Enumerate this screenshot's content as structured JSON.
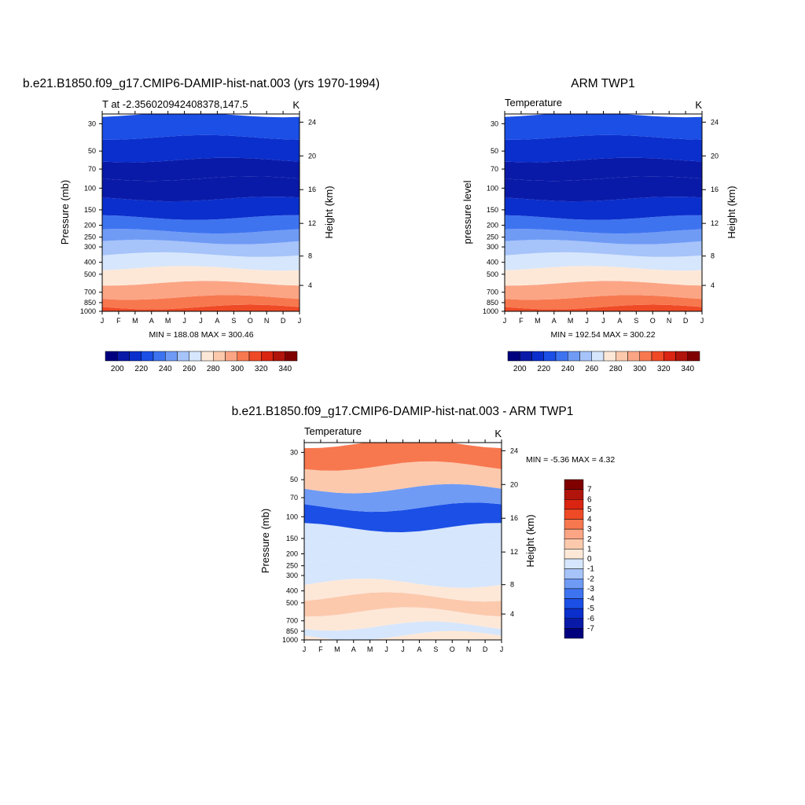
{
  "panel1": {
    "title": "b.e21.B1850.f09_g17.CMIP6-DAMIP-hist-nat.003 (yrs 1970-1994)",
    "left_label": "T at -2.356020942408378,147.5",
    "right_label": "K",
    "ylabel": "Pressure (mb)",
    "y2label": "Height (km)",
    "minmax": "MIN = 188.08 MAX = 300.46"
  },
  "panel2": {
    "title": "ARM TWP1",
    "left_label": "Temperature",
    "right_label": "K",
    "ylabel": "pressure level",
    "y2label": "Height (km)",
    "minmax": "MIN = 192.54 MAX = 300.22"
  },
  "panel3": {
    "title": "b.e21.B1850.f09_g17.CMIP6-DAMIP-hist-nat.003 - ARM TWP1",
    "left_label": "Temperature",
    "right_label": "K",
    "ylabel": "Pressure (mb)",
    "y2label": "Height (km)",
    "minmax": "MIN =  -5.36 MAX =   4.32"
  },
  "chart_data": [
    {
      "type": "heatmap",
      "title": "b.e21.B1850.f09_g17.CMIP6-DAMIP-hist-nat.003 (yrs 1970-1994)",
      "subtitle": "T at -2.356020942408378,147.5",
      "units": "K",
      "xlabel": "",
      "ylabel": "Pressure (mb)",
      "y2label": "Height (km)",
      "x_ticks": [
        "J",
        "F",
        "M",
        "A",
        "M",
        "J",
        "J",
        "A",
        "S",
        "O",
        "N",
        "D",
        "J"
      ],
      "y_ticks": [
        30,
        50,
        70,
        100,
        150,
        200,
        250,
        300,
        400,
        500,
        700,
        850,
        1000
      ],
      "y2_ticks": [
        24,
        20,
        16,
        12,
        8,
        4
      ],
      "ylim": [
        1000,
        25
      ],
      "y_scale": "log",
      "min": 188.08,
      "max": 300.46,
      "colorbar_levels": [
        200,
        220,
        240,
        260,
        280,
        300,
        320,
        340
      ],
      "colors": [
        "#00007f",
        "#0a1aa8",
        "#0b2fcc",
        "#1b4fe6",
        "#3e73f0",
        "#6f9bf5",
        "#a6c3fa",
        "#d6e6fc",
        "#fde8d8",
        "#fcc9ad",
        "#fba585",
        "#f7784f",
        "#ef4a26",
        "#d92511",
        "#b0140b",
        "#800000"
      ],
      "bands": [
        {
          "p": 1000,
          "value": 300
        },
        {
          "p": 850,
          "value": 294
        },
        {
          "p": 700,
          "value": 286
        },
        {
          "p": 500,
          "value": 268
        },
        {
          "p": 400,
          "value": 258
        },
        {
          "p": 300,
          "value": 244
        },
        {
          "p": 250,
          "value": 234
        },
        {
          "p": 200,
          "value": 222
        },
        {
          "p": 150,
          "value": 208
        },
        {
          "p": 100,
          "value": 192
        },
        {
          "p": 70,
          "value": 196
        },
        {
          "p": 50,
          "value": 206
        },
        {
          "p": 30,
          "value": 214
        }
      ]
    },
    {
      "type": "heatmap",
      "title": "ARM TWP1",
      "subtitle": "Temperature",
      "units": "K",
      "xlabel": "",
      "ylabel": "pressure level",
      "y2label": "Height (km)",
      "x_ticks": [
        "J",
        "F",
        "M",
        "A",
        "M",
        "J",
        "J",
        "A",
        "S",
        "O",
        "N",
        "D",
        "J"
      ],
      "y_ticks": [
        30,
        50,
        70,
        100,
        150,
        200,
        250,
        300,
        400,
        500,
        700,
        850,
        1000
      ],
      "y2_ticks": [
        24,
        20,
        16,
        12,
        8,
        4
      ],
      "ylim": [
        1000,
        25
      ],
      "y_scale": "log",
      "min": 192.54,
      "max": 300.22,
      "colorbar_levels": [
        200,
        220,
        240,
        260,
        280,
        300,
        320,
        340
      ],
      "colors": [
        "#00007f",
        "#0a1aa8",
        "#0b2fcc",
        "#1b4fe6",
        "#3e73f0",
        "#6f9bf5",
        "#a6c3fa",
        "#d6e6fc",
        "#fde8d8",
        "#fcc9ad",
        "#fba585",
        "#f7784f",
        "#ef4a26",
        "#d92511",
        "#b0140b",
        "#800000"
      ],
      "bands": [
        {
          "p": 1000,
          "value": 300
        },
        {
          "p": 850,
          "value": 294
        },
        {
          "p": 700,
          "value": 286
        },
        {
          "p": 500,
          "value": 268
        },
        {
          "p": 400,
          "value": 258
        },
        {
          "p": 300,
          "value": 244
        },
        {
          "p": 250,
          "value": 234
        },
        {
          "p": 200,
          "value": 222
        },
        {
          "p": 150,
          "value": 208
        },
        {
          "p": 100,
          "value": 194
        },
        {
          "p": 70,
          "value": 198
        },
        {
          "p": 50,
          "value": 206
        },
        {
          "p": 30,
          "value": 214
        }
      ]
    },
    {
      "type": "heatmap",
      "title": "b.e21.B1850.f09_g17.CMIP6-DAMIP-hist-nat.003 - ARM TWP1",
      "subtitle": "Temperature",
      "units": "K",
      "xlabel": "",
      "ylabel": "Pressure (mb)",
      "y2label": "Height (km)",
      "x_ticks": [
        "J",
        "F",
        "M",
        "A",
        "M",
        "J",
        "J",
        "A",
        "S",
        "O",
        "N",
        "D",
        "J"
      ],
      "y_ticks": [
        30,
        50,
        70,
        100,
        150,
        200,
        250,
        300,
        400,
        500,
        700,
        850,
        1000
      ],
      "y2_ticks": [
        24,
        20,
        16,
        12,
        8,
        4
      ],
      "ylim": [
        1000,
        25
      ],
      "y_scale": "log",
      "min": -5.36,
      "max": 4.32,
      "colorbar_levels": [
        -7,
        -6,
        -5,
        -4,
        -3,
        -2,
        -1,
        0,
        1,
        2,
        3,
        4,
        5,
        6,
        7
      ],
      "colors": [
        "#00007f",
        "#0a1aa8",
        "#0b2fcc",
        "#1b4fe6",
        "#3e73f0",
        "#6f9bf5",
        "#a6c3fa",
        "#d6e6fc",
        "#fde8d8",
        "#fcc9ad",
        "#fba585",
        "#f7784f",
        "#ef4a26",
        "#d92511",
        "#b0140b",
        "#800000"
      ],
      "bands": [
        {
          "p": 1000,
          "value": 0.5
        },
        {
          "p": 850,
          "value": -0.5
        },
        {
          "p": 700,
          "value": 0.8
        },
        {
          "p": 500,
          "value": 1.5
        },
        {
          "p": 400,
          "value": 0.6
        },
        {
          "p": 300,
          "value": -0.4
        },
        {
          "p": 200,
          "value": -0.3
        },
        {
          "p": 150,
          "value": -0.6
        },
        {
          "p": 100,
          "value": -4.5
        },
        {
          "p": 70,
          "value": -2.5
        },
        {
          "p": 50,
          "value": 1.5
        },
        {
          "p": 30,
          "value": 3.0
        }
      ]
    }
  ]
}
